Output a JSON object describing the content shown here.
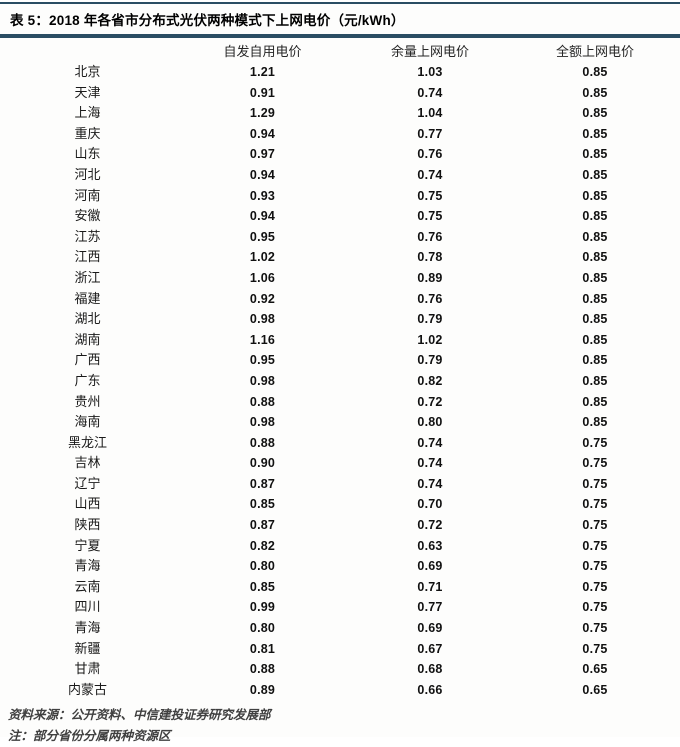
{
  "colors": {
    "accent": "#2a4d63"
  },
  "table": {
    "title": "表 5：2018 年各省市分布式光伏两种模式下上网电价（元/kWh）",
    "columns": [
      "",
      "自发自用电价",
      "余量上网电价",
      "全额上网电价"
    ],
    "rows": [
      [
        "北京",
        "1.21",
        "1.03",
        "0.85"
      ],
      [
        "天津",
        "0.91",
        "0.74",
        "0.85"
      ],
      [
        "上海",
        "1.29",
        "1.04",
        "0.85"
      ],
      [
        "重庆",
        "0.94",
        "0.77",
        "0.85"
      ],
      [
        "山东",
        "0.97",
        "0.76",
        "0.85"
      ],
      [
        "河北",
        "0.94",
        "0.74",
        "0.85"
      ],
      [
        "河南",
        "0.93",
        "0.75",
        "0.85"
      ],
      [
        "安徽",
        "0.94",
        "0.75",
        "0.85"
      ],
      [
        "江苏",
        "0.95",
        "0.76",
        "0.85"
      ],
      [
        "江西",
        "1.02",
        "0.78",
        "0.85"
      ],
      [
        "浙江",
        "1.06",
        "0.89",
        "0.85"
      ],
      [
        "福建",
        "0.92",
        "0.76",
        "0.85"
      ],
      [
        "湖北",
        "0.98",
        "0.79",
        "0.85"
      ],
      [
        "湖南",
        "1.16",
        "1.02",
        "0.85"
      ],
      [
        "广西",
        "0.95",
        "0.79",
        "0.85"
      ],
      [
        "广东",
        "0.98",
        "0.82",
        "0.85"
      ],
      [
        "贵州",
        "0.88",
        "0.72",
        "0.85"
      ],
      [
        "海南",
        "0.98",
        "0.80",
        "0.85"
      ],
      [
        "黑龙江",
        "0.88",
        "0.74",
        "0.75"
      ],
      [
        "吉林",
        "0.90",
        "0.74",
        "0.75"
      ],
      [
        "辽宁",
        "0.87",
        "0.74",
        "0.75"
      ],
      [
        "山西",
        "0.85",
        "0.70",
        "0.75"
      ],
      [
        "陕西",
        "0.87",
        "0.72",
        "0.75"
      ],
      [
        "宁夏",
        "0.82",
        "0.63",
        "0.75"
      ],
      [
        "青海",
        "0.80",
        "0.69",
        "0.75"
      ],
      [
        "云南",
        "0.85",
        "0.71",
        "0.75"
      ],
      [
        "四川",
        "0.99",
        "0.77",
        "0.75"
      ],
      [
        "青海",
        "0.80",
        "0.69",
        "0.75"
      ],
      [
        "新疆",
        "0.81",
        "0.67",
        "0.75"
      ],
      [
        "甘肃",
        "0.88",
        "0.68",
        "0.65"
      ],
      [
        "内蒙古",
        "0.89",
        "0.66",
        "0.65"
      ]
    ]
  },
  "footer": {
    "source": "资料来源：公开资料、中信建投证券研究发展部",
    "note": "注：部分省份分属两种资源区"
  }
}
